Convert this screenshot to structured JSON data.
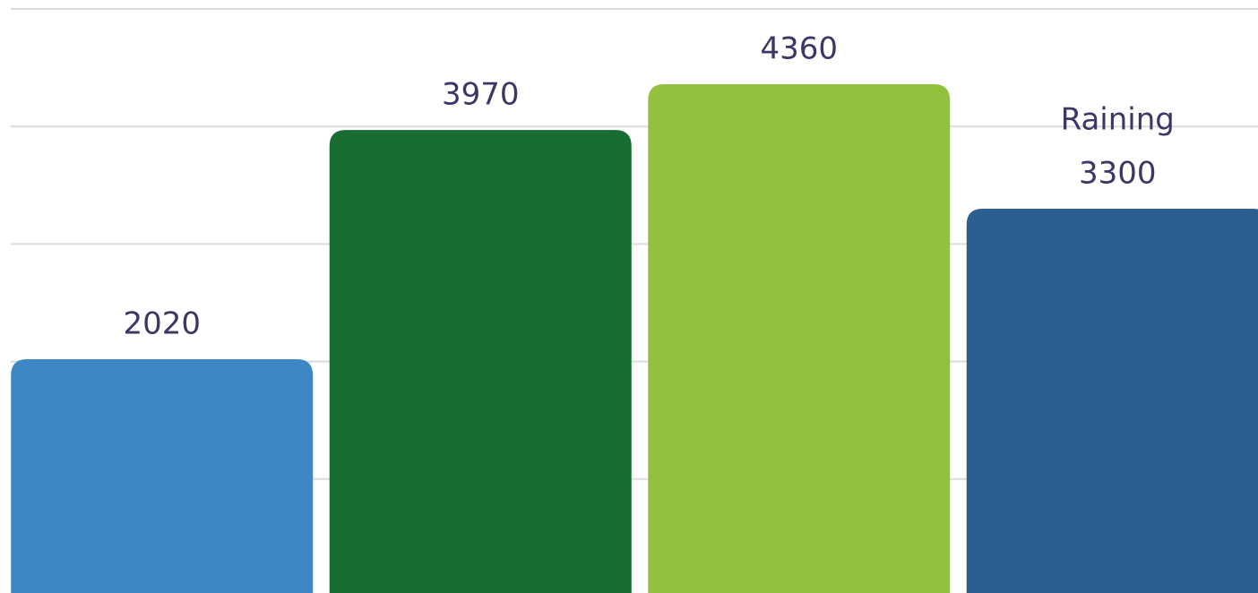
{
  "chart_data": {
    "type": "bar",
    "categories": [
      null,
      null,
      null,
      "Raining"
    ],
    "values": [
      2020,
      3970,
      4360,
      3300
    ],
    "colors": [
      "#3d88c4",
      "#176d32",
      "#93c13e",
      "#2b5f8f"
    ],
    "ylim": [
      0,
      5000
    ],
    "yticks": [
      1000,
      2000,
      3000,
      4000,
      5000
    ],
    "grid": true
  }
}
